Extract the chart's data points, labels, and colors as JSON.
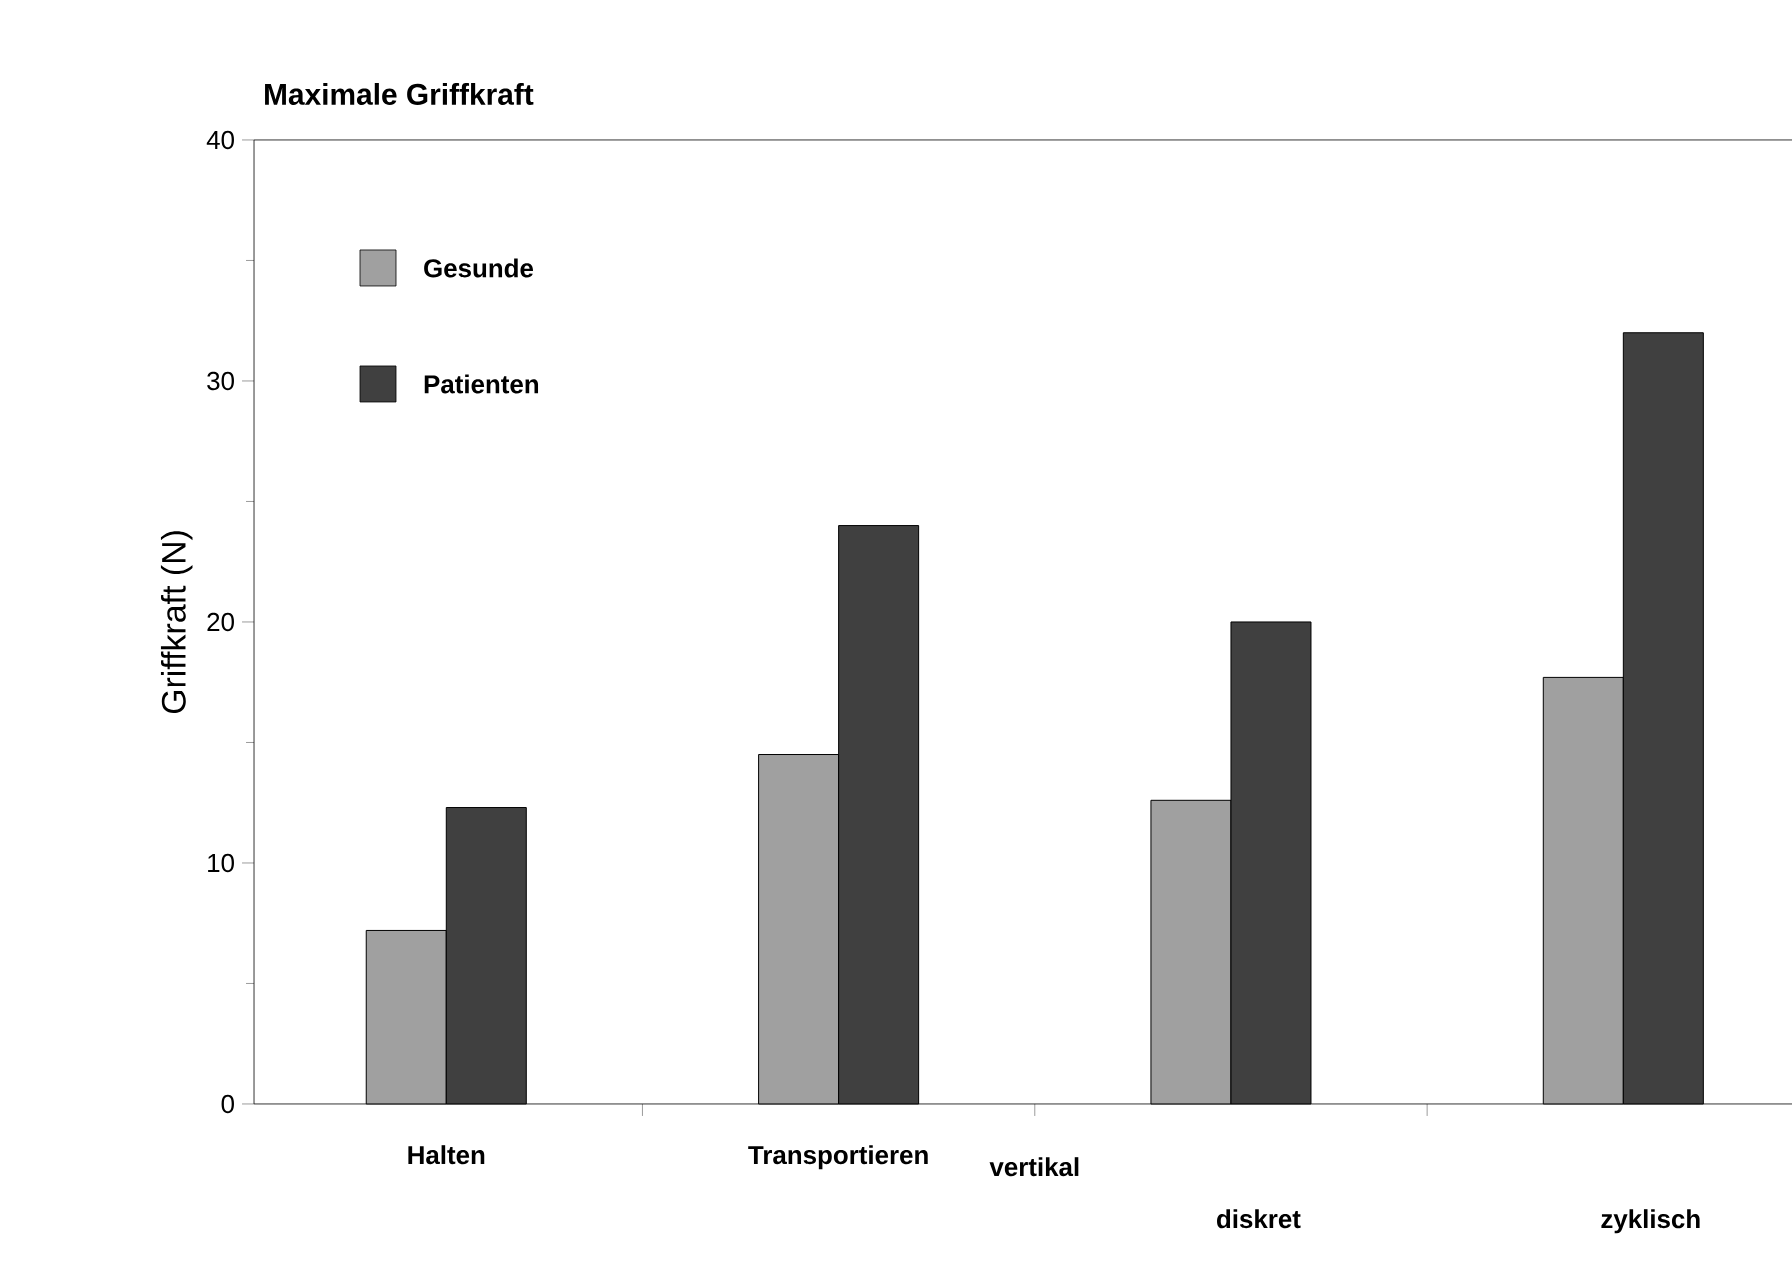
{
  "chart_data": {
    "type": "bar",
    "title": "Maximale Griffkraft",
    "ylabel": "Griffkraft (N)",
    "categories": [
      "Halten",
      "Transportieren",
      "diskret",
      "zyklisch"
    ],
    "series": [
      {
        "name": "Gesunde",
        "color": "#a0a0a0",
        "values": [
          7.2,
          14.5,
          12.6,
          17.7
        ]
      },
      {
        "name": "Patienten",
        "color": "#404040",
        "values": [
          12.3,
          24,
          20,
          32
        ]
      }
    ],
    "annotations": [
      "vertikal"
    ],
    "ylim": [
      0,
      40
    ],
    "yticks": [
      0,
      10,
      20,
      30,
      40
    ],
    "legend": "top left",
    "grid": false
  }
}
